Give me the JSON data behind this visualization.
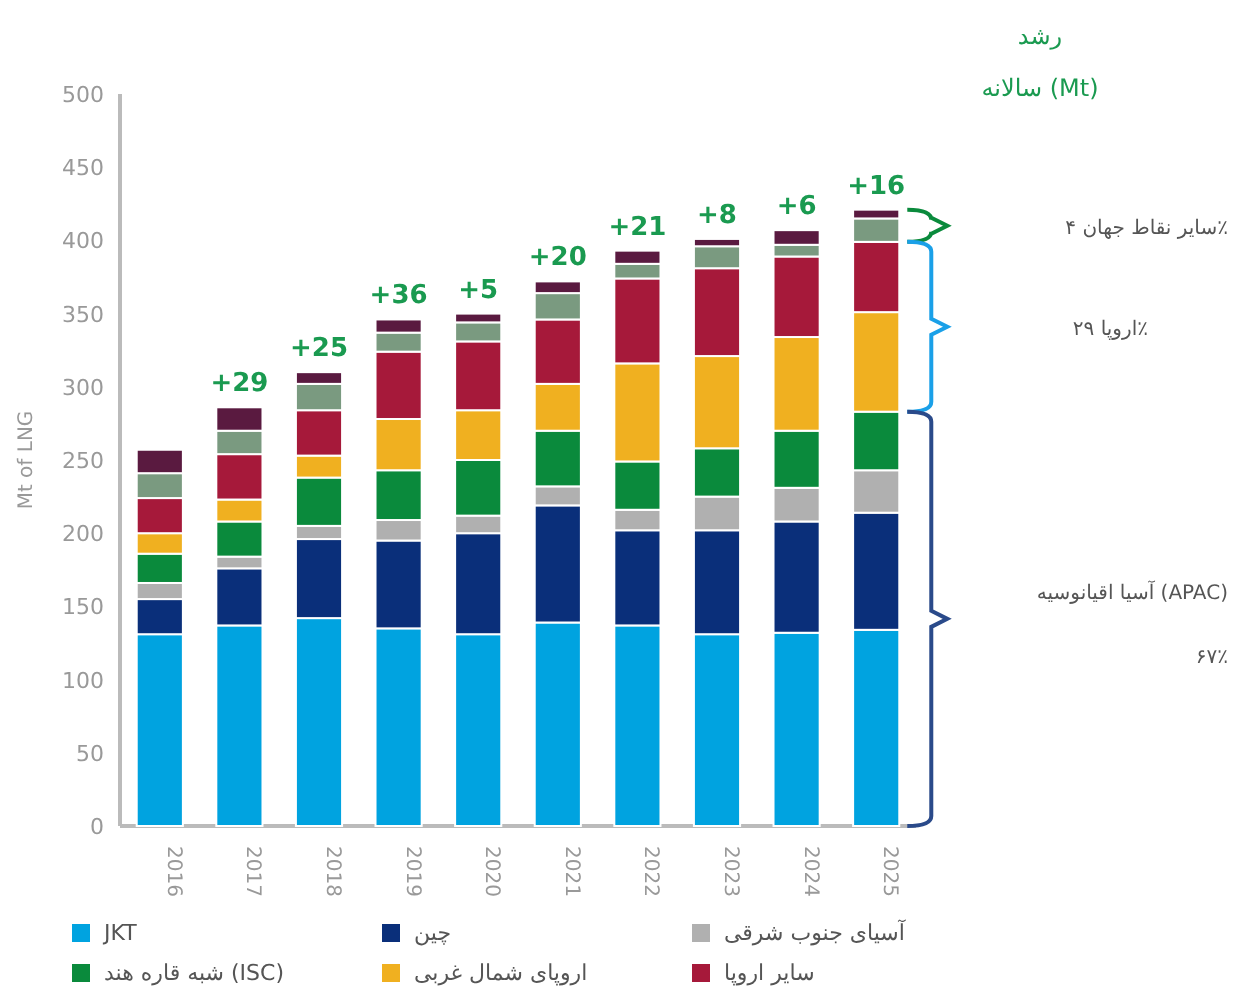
{
  "chart_data": {
    "type": "bar",
    "stacked": true,
    "title": "رشد\nسالانه (Mt)",
    "ylabel": "Mt of LNG",
    "categories": [
      "2016",
      "2017",
      "2018",
      "2019",
      "2020",
      "2021",
      "2022",
      "2023",
      "2024",
      "2025"
    ],
    "series": [
      {
        "name": "JKT",
        "color": "#00a3e0",
        "values": [
          131,
          137,
          142,
          135,
          131,
          139,
          137,
          131,
          132,
          134
        ]
      },
      {
        "name": "چین",
        "color": "#0a2f7a",
        "values": [
          24,
          39,
          54,
          60,
          69,
          80,
          65,
          71,
          76,
          80
        ]
      },
      {
        "name": "آسیای جنوب شرقی",
        "color": "#b0b0b0",
        "values": [
          11,
          8,
          9,
          14,
          12,
          13,
          14,
          23,
          23,
          29
        ]
      },
      {
        "name": "شبه قاره هند (ISC)",
        "color": "#0a8a3c",
        "values": [
          20,
          24,
          33,
          34,
          38,
          38,
          33,
          33,
          39,
          40
        ]
      },
      {
        "name": "اروپای شمال غربی",
        "color": "#f0b020",
        "values": [
          14,
          15,
          15,
          35,
          34,
          32,
          67,
          63,
          64,
          68
        ]
      },
      {
        "name": "سایر اروپا",
        "color": "#a6193a",
        "values": [
          24,
          31,
          31,
          46,
          47,
          44,
          58,
          60,
          55,
          48
        ]
      },
      {
        "color": "#7a9a80",
        "values": [
          17,
          16,
          18,
          13,
          13,
          18,
          10,
          15,
          8,
          16
        ]
      },
      {
        "color": "#5a1a40",
        "values": [
          16,
          16,
          8,
          9,
          6,
          8,
          9,
          5,
          10,
          6
        ]
      }
    ],
    "ylim": [
      0,
      500
    ],
    "yticks": [
      0,
      50,
      100,
      150,
      200,
      250,
      300,
      350,
      400,
      450,
      500
    ],
    "legend": "bottom",
    "grid": false,
    "annotations": [
      {
        "text": "+29",
        "x": "2017",
        "y": 286
      },
      {
        "text": "+25",
        "x": "2018",
        "y": 310
      },
      {
        "text": "+36",
        "x": "2019",
        "y": 346
      },
      {
        "text": "+5",
        "x": "2020",
        "y": 350
      },
      {
        "text": "+20",
        "x": "2021",
        "y": 372
      },
      {
        "text": "+21",
        "x": "2022",
        "y": 393
      },
      {
        "text": "+8",
        "x": "2023",
        "y": 401
      },
      {
        "text": "+6",
        "x": "2024",
        "y": 407
      },
      {
        "text": "+16",
        "x": "2025",
        "y": 421
      },
      "سایر نقاط جهان ۴٪",
      "اروپا ۲۹٪",
      "آسیا اقیانوسیه (APAC)\n۶۷٪"
    ]
  }
}
